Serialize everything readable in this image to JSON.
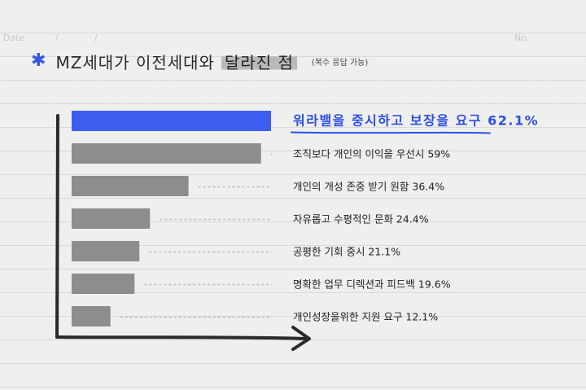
{
  "header": {
    "title_prefix": "MZ세대가 이전세대와",
    "title_highlight": "달라진 점",
    "subtitle": "(복수 응답 가능)",
    "date_label": "Date",
    "date_slash_1": "/",
    "date_slash_2": "/",
    "no_label": "No."
  },
  "colors": {
    "highlight_bar": "#3c5ef0",
    "bar": "#8d8d8d",
    "highlight_text": "#2b4fe6",
    "axis": "#2a2a2a"
  },
  "chart_data": {
    "type": "bar",
    "orientation": "horizontal",
    "categories": [
      "워라밸을 중시하고 보장을 요구",
      "조직보다 개인의 이익을 우선시",
      "개인의 개성 존중 받기 원함",
      "자유롭고 수평적인 문화",
      "공평한 기회 중시",
      "명확한 업무 디렉션과 피드백",
      "개인성장을위한 지원 요구"
    ],
    "labels": [
      "워라밸을 중시하고 보장을 요구 62.1%",
      "조직보다 개인의 이익을 우선시 59%",
      "개인의 개성 존중 받기 원함 36.4%",
      "자유롭고 수평적인 문화 24.4%",
      "공평한 기회 중시 21.1%",
      "명확한 업무 디렉션과 피드백 19.6%",
      "개인성장을위한 지원 요구 12.1%"
    ],
    "values": [
      62.1,
      59,
      36.4,
      24.4,
      21.1,
      19.6,
      12.1
    ],
    "unit": "%",
    "highlight_index": 0,
    "grid": false,
    "legend": "none"
  }
}
